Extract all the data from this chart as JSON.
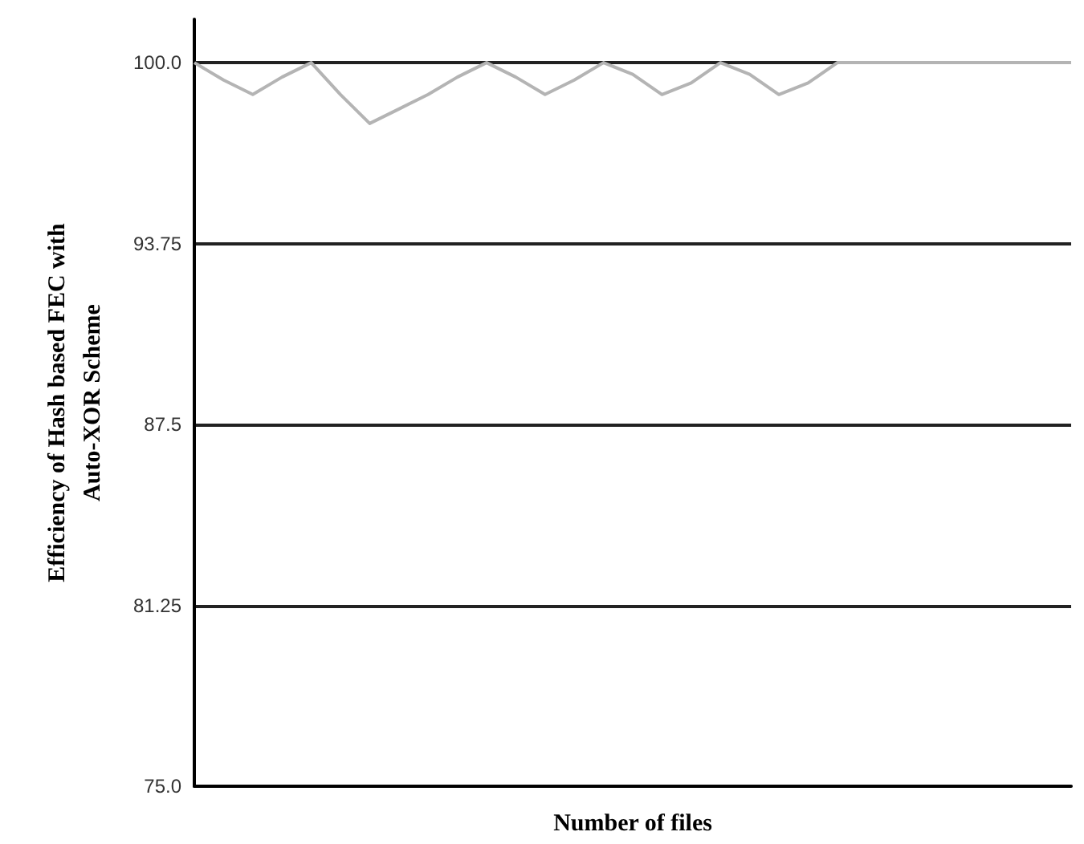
{
  "chart_data": {
    "type": "line",
    "xlabel": "Number of files",
    "ylabel": "Efficiency of Hash based FEC with\nAuto-XOR Scheme",
    "categories": [
      null,
      null,
      null,
      null,
      null,
      null,
      null,
      null,
      null,
      null,
      null,
      null,
      null,
      null,
      null,
      null,
      null,
      null,
      null,
      null,
      null,
      null,
      null,
      null,
      null,
      null,
      null,
      null,
      null,
      null,
      null
    ],
    "series": [
      {
        "color": "#b4b4b4",
        "values": [
          100,
          99.4,
          98.9,
          99.5,
          100,
          98.9,
          97.9,
          98.4,
          98.9,
          99.5,
          100,
          99.5,
          98.9,
          99.4,
          100,
          99.6,
          98.9,
          99.3,
          100,
          99.6,
          98.9,
          99.3,
          100,
          100,
          100,
          100,
          100,
          100,
          100,
          100,
          100
        ]
      }
    ],
    "ylim": [
      75,
      101.5
    ],
    "yticks": [
      {
        "value": 75,
        "label": "75.0"
      },
      81.25,
      87.5,
      93.75,
      {
        "value": 100,
        "label": "100.0"
      }
    ],
    "grid": "y",
    "marker": "none",
    "line_style": "solid",
    "tick_labels": "y"
  }
}
